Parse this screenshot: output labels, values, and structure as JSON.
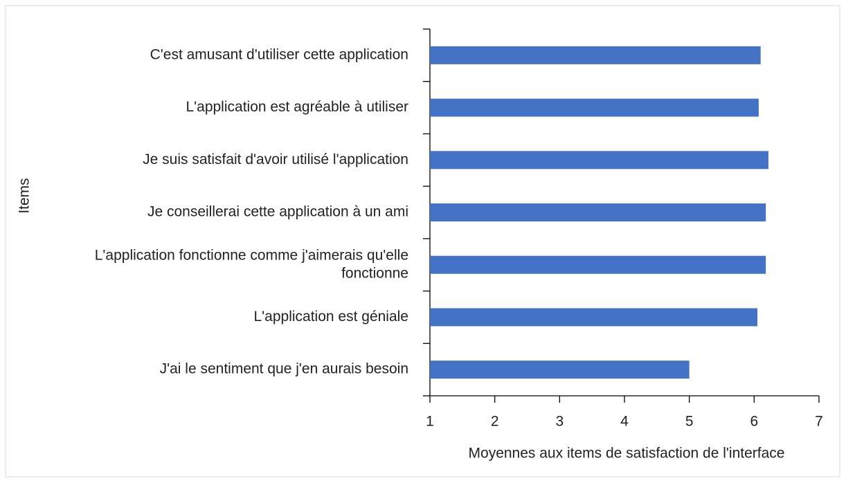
{
  "chart_data": {
    "type": "bar",
    "orientation": "horizontal",
    "x_label": "Moyennes aux items de satisfaction de l'interface",
    "y_label": "Items",
    "categories": [
      "C'est amusant d'utiliser cette application",
      "L'application est agréable à utiliser",
      "Je suis satisfait d'avoir utilisé l'application",
      "Je conseillerai cette application à un ami",
      "L'application fonctionne comme j'aimerais qu'elle fonctionne",
      "L'application est géniale",
      "J'ai le sentiment que j'en aurais besoin"
    ],
    "values": [
      6.1,
      6.07,
      6.22,
      6.18,
      6.18,
      6.05,
      5.0
    ],
    "color": "#4472c4",
    "xlim": [
      1,
      7
    ],
    "xticks": [
      1,
      2,
      3,
      4,
      5,
      6,
      7
    ],
    "grid": false
  }
}
